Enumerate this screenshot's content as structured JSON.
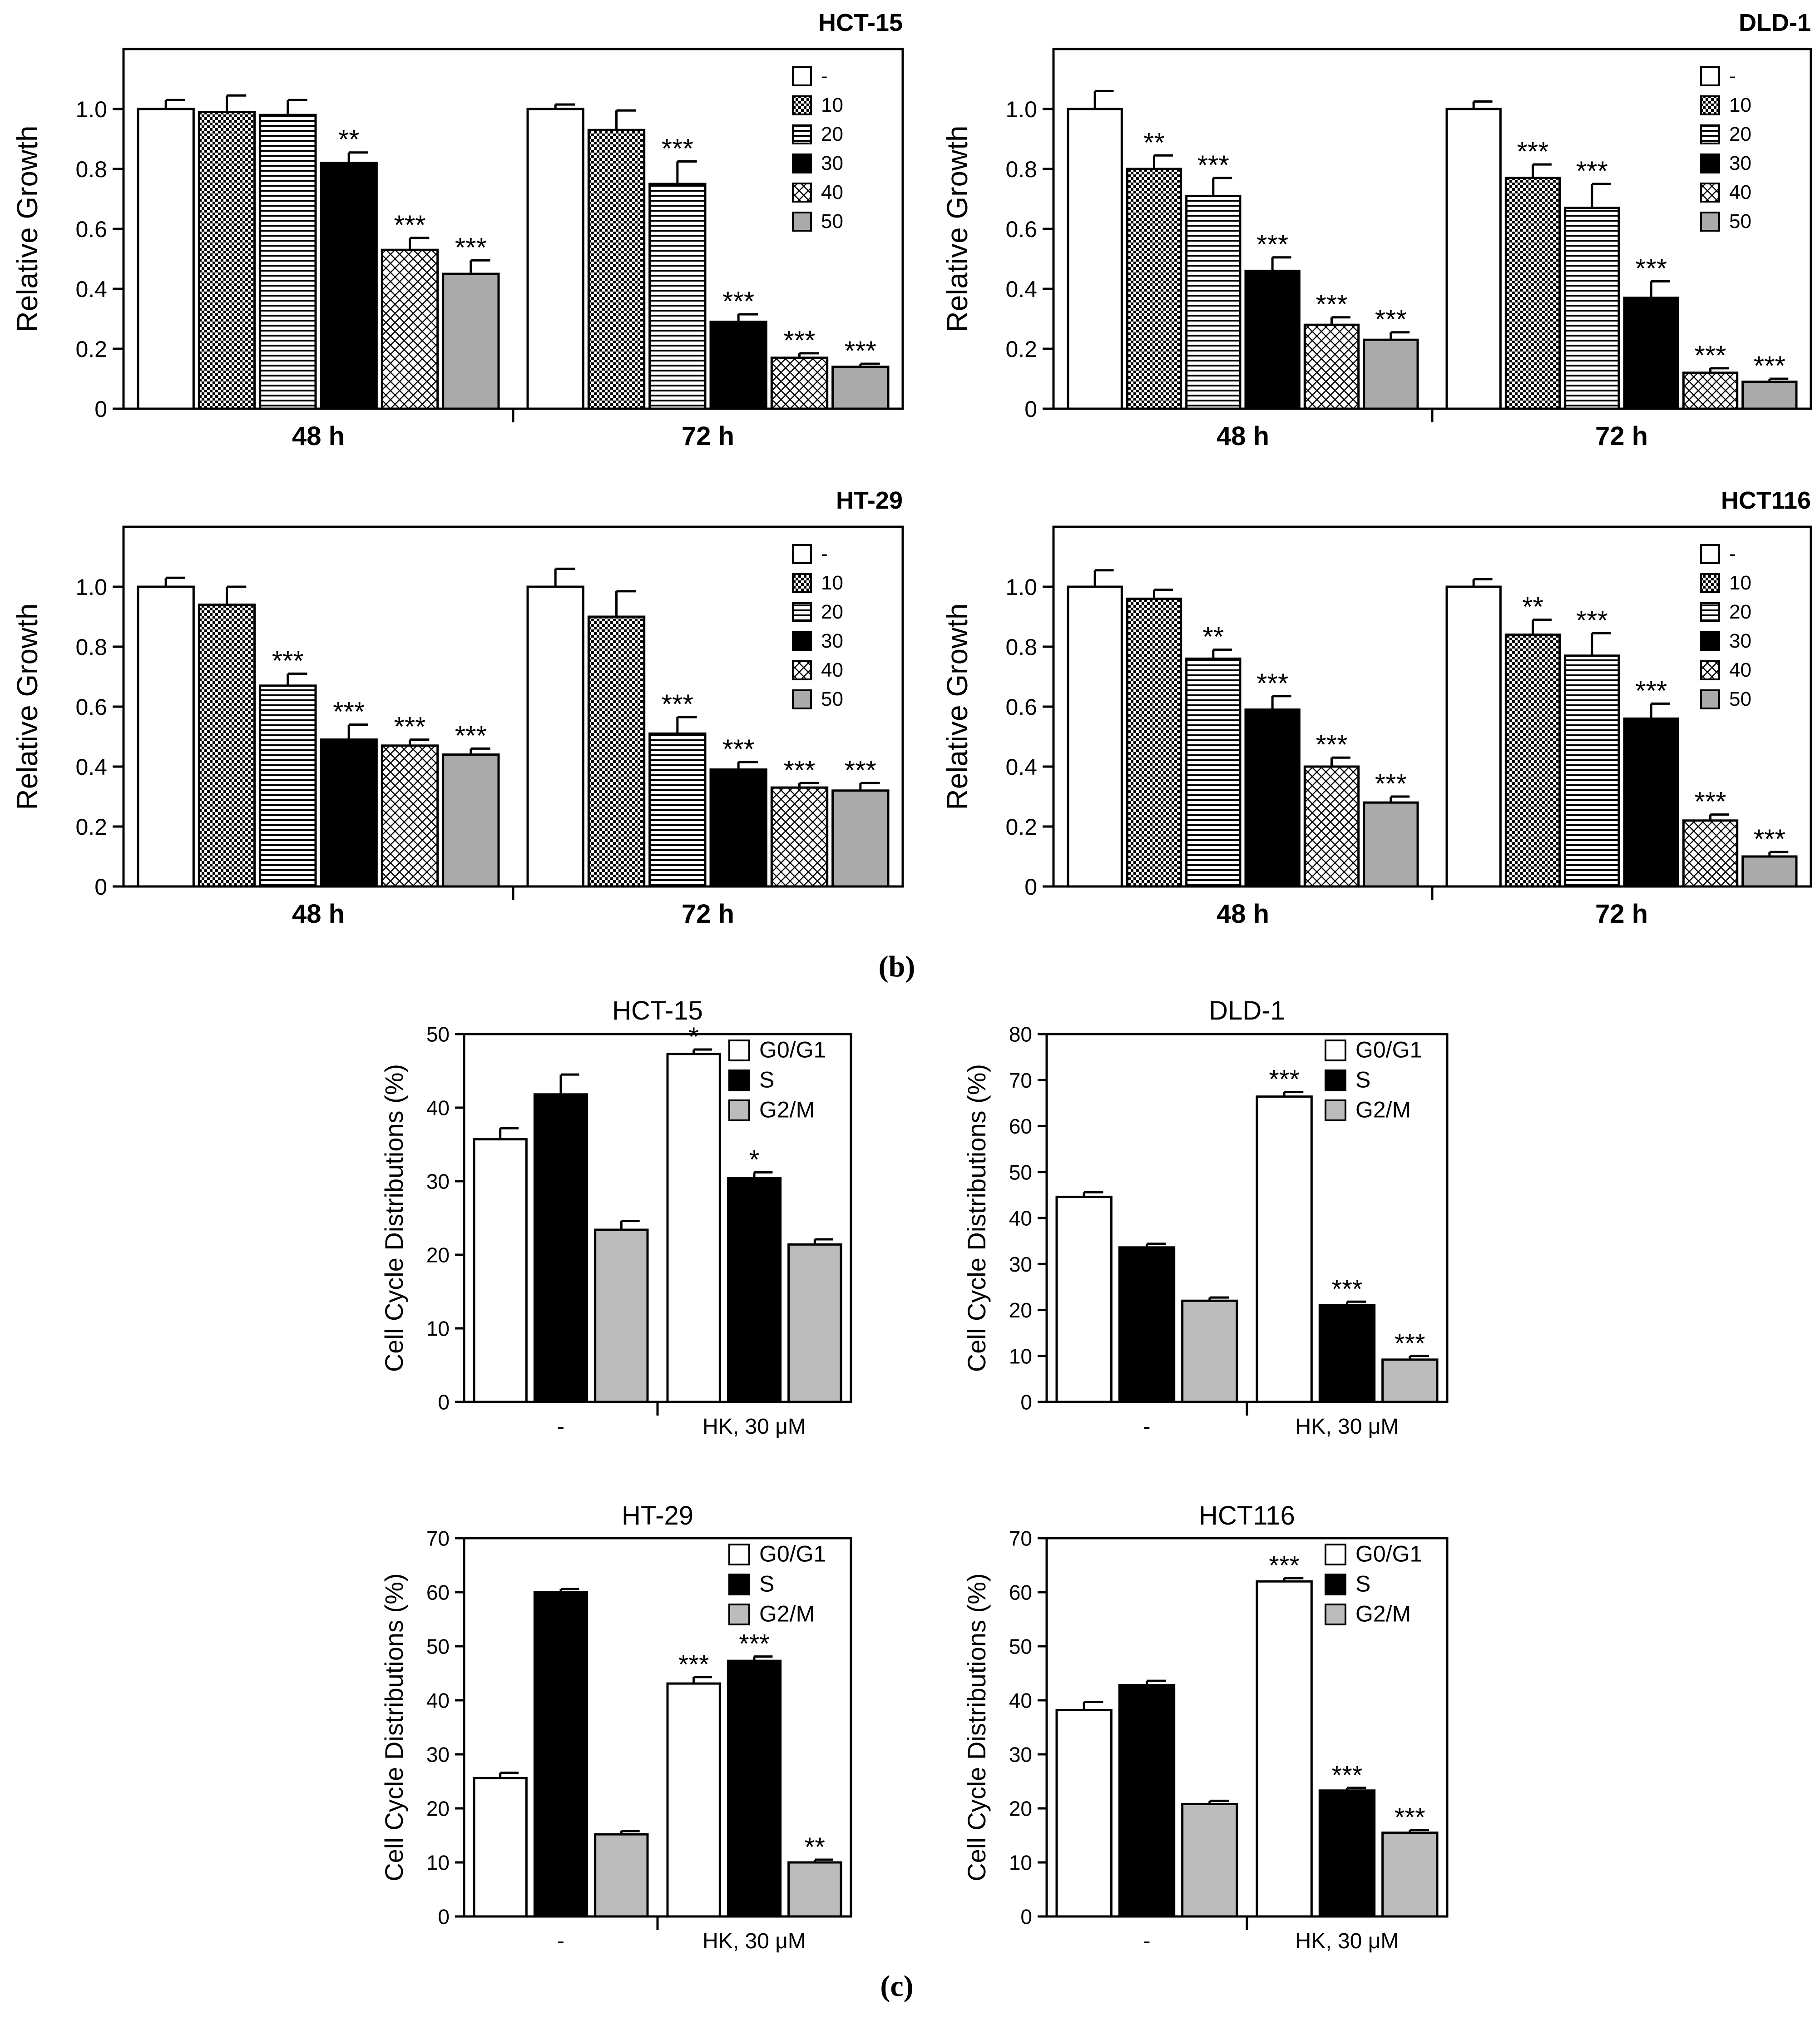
{
  "panel_labels": [
    "(b)",
    "(c)"
  ],
  "chart_data": [
    {
      "id": "b1",
      "type": "bar",
      "title": "HCT-15",
      "ylabel": "Relative Growth",
      "groups": [
        "48 h",
        "72 h"
      ],
      "ylim": [
        0,
        1.2
      ],
      "yticks": [
        0,
        0.2,
        0.4,
        0.6,
        0.8,
        1.0
      ],
      "ytick_labels": [
        "0",
        "0.2",
        "0.4",
        "0.6",
        "0.8",
        "1.0"
      ],
      "legend": [
        "-",
        "10",
        "20",
        "30",
        "40",
        "50"
      ],
      "series": [
        {
          "name": "-",
          "values": [
            1.0,
            1.0
          ],
          "errors": [
            0.03,
            0.015
          ],
          "sig": [
            "",
            ""
          ]
        },
        {
          "name": "10",
          "values": [
            0.99,
            0.93
          ],
          "errors": [
            0.055,
            0.065
          ],
          "sig": [
            "",
            ""
          ]
        },
        {
          "name": "20",
          "values": [
            0.98,
            0.75
          ],
          "errors": [
            0.05,
            0.075
          ],
          "sig": [
            "",
            "***"
          ]
        },
        {
          "name": "30",
          "values": [
            0.82,
            0.29
          ],
          "errors": [
            0.035,
            0.025
          ],
          "sig": [
            "**",
            "***"
          ]
        },
        {
          "name": "40",
          "values": [
            0.53,
            0.17
          ],
          "errors": [
            0.04,
            0.015
          ],
          "sig": [
            "***",
            "***"
          ]
        },
        {
          "name": "50",
          "values": [
            0.45,
            0.14
          ],
          "errors": [
            0.045,
            0.01
          ],
          "sig": [
            "***",
            "***"
          ]
        }
      ]
    },
    {
      "id": "b2",
      "type": "bar",
      "title": "DLD-1",
      "ylabel": "Relative Growth",
      "groups": [
        "48 h",
        "72 h"
      ],
      "ylim": [
        0,
        1.2
      ],
      "yticks": [
        0,
        0.2,
        0.4,
        0.6,
        0.8,
        1.0
      ],
      "ytick_labels": [
        "0",
        "0.2",
        "0.4",
        "0.6",
        "0.8",
        "1.0"
      ],
      "legend": [
        "-",
        "10",
        "20",
        "30",
        "40",
        "50"
      ],
      "series": [
        {
          "name": "-",
          "values": [
            1.0,
            1.0
          ],
          "errors": [
            0.06,
            0.025
          ],
          "sig": [
            "",
            ""
          ]
        },
        {
          "name": "10",
          "values": [
            0.8,
            0.77
          ],
          "errors": [
            0.045,
            0.045
          ],
          "sig": [
            "**",
            "***"
          ]
        },
        {
          "name": "20",
          "values": [
            0.71,
            0.67
          ],
          "errors": [
            0.06,
            0.08
          ],
          "sig": [
            "***",
            "***"
          ]
        },
        {
          "name": "30",
          "values": [
            0.46,
            0.37
          ],
          "errors": [
            0.045,
            0.055
          ],
          "sig": [
            "***",
            "***"
          ]
        },
        {
          "name": "40",
          "values": [
            0.28,
            0.12
          ],
          "errors": [
            0.025,
            0.015
          ],
          "sig": [
            "***",
            "***"
          ]
        },
        {
          "name": "50",
          "values": [
            0.23,
            0.09
          ],
          "errors": [
            0.025,
            0.01
          ],
          "sig": [
            "***",
            "***"
          ]
        }
      ]
    },
    {
      "id": "b3",
      "type": "bar",
      "title": "HT-29",
      "ylabel": "Relative Growth",
      "groups": [
        "48 h",
        "72 h"
      ],
      "ylim": [
        0,
        1.2
      ],
      "yticks": [
        0,
        0.2,
        0.4,
        0.6,
        0.8,
        1.0
      ],
      "ytick_labels": [
        "0",
        "0.2",
        "0.4",
        "0.6",
        "0.8",
        "1.0"
      ],
      "legend": [
        "-",
        "10",
        "20",
        "30",
        "40",
        "50"
      ],
      "series": [
        {
          "name": "-",
          "values": [
            1.0,
            1.0
          ],
          "errors": [
            0.03,
            0.06
          ],
          "sig": [
            "",
            ""
          ]
        },
        {
          "name": "10",
          "values": [
            0.94,
            0.9
          ],
          "errors": [
            0.06,
            0.085
          ],
          "sig": [
            "",
            ""
          ]
        },
        {
          "name": "20",
          "values": [
            0.67,
            0.51
          ],
          "errors": [
            0.04,
            0.055
          ],
          "sig": [
            "***",
            "***"
          ]
        },
        {
          "name": "30",
          "values": [
            0.49,
            0.39
          ],
          "errors": [
            0.05,
            0.025
          ],
          "sig": [
            "***",
            "***"
          ]
        },
        {
          "name": "40",
          "values": [
            0.47,
            0.33
          ],
          "errors": [
            0.02,
            0.015
          ],
          "sig": [
            "***",
            "***"
          ]
        },
        {
          "name": "50",
          "values": [
            0.44,
            0.32
          ],
          "errors": [
            0.02,
            0.025
          ],
          "sig": [
            "***",
            "***"
          ]
        }
      ]
    },
    {
      "id": "b4",
      "type": "bar",
      "title": "HCT116",
      "ylabel": "Relative Growth",
      "groups": [
        "48 h",
        "72 h"
      ],
      "ylim": [
        0,
        1.2
      ],
      "yticks": [
        0,
        0.2,
        0.4,
        0.6,
        0.8,
        1.0
      ],
      "ytick_labels": [
        "0",
        "0.2",
        "0.4",
        "0.6",
        "0.8",
        "1.0"
      ],
      "legend": [
        "-",
        "10",
        "20",
        "30",
        "40",
        "50"
      ],
      "series": [
        {
          "name": "-",
          "values": [
            1.0,
            1.0
          ],
          "errors": [
            0.055,
            0.025
          ],
          "sig": [
            "",
            ""
          ]
        },
        {
          "name": "10",
          "values": [
            0.96,
            0.84
          ],
          "errors": [
            0.03,
            0.05
          ],
          "sig": [
            "",
            "**"
          ]
        },
        {
          "name": "20",
          "values": [
            0.76,
            0.77
          ],
          "errors": [
            0.03,
            0.075
          ],
          "sig": [
            "**",
            "***"
          ]
        },
        {
          "name": "30",
          "values": [
            0.59,
            0.56
          ],
          "errors": [
            0.045,
            0.05
          ],
          "sig": [
            "***",
            "***"
          ]
        },
        {
          "name": "40",
          "values": [
            0.4,
            0.22
          ],
          "errors": [
            0.03,
            0.02
          ],
          "sig": [
            "***",
            "***"
          ]
        },
        {
          "name": "50",
          "values": [
            0.28,
            0.1
          ],
          "errors": [
            0.02,
            0.015
          ],
          "sig": [
            "***",
            "***"
          ]
        }
      ]
    },
    {
      "id": "c1",
      "type": "bar",
      "title": "HCT-15",
      "ylabel": "Cell Cycle Distributions (%)",
      "groups": [
        "-",
        "HK, 30 μM"
      ],
      "ylim": [
        0,
        50
      ],
      "yticks": [
        0,
        10,
        20,
        30,
        40,
        50
      ],
      "ytick_labels": [
        "0",
        "10",
        "20",
        "30",
        "40",
        "50"
      ],
      "legend": [
        "G0/G1",
        "S",
        "G2/M"
      ],
      "series": [
        {
          "name": "G0/G1",
          "values": [
            35.7,
            47.3
          ],
          "errors": [
            1.5,
            0.6
          ],
          "sig": [
            "",
            "*"
          ]
        },
        {
          "name": "S",
          "values": [
            41.8,
            30.4
          ],
          "errors": [
            2.7,
            0.8
          ],
          "sig": [
            "",
            "*"
          ]
        },
        {
          "name": "G2/M",
          "values": [
            23.4,
            21.4
          ],
          "errors": [
            1.2,
            0.7
          ],
          "sig": [
            "",
            ""
          ]
        }
      ]
    },
    {
      "id": "c2",
      "type": "bar",
      "title": "DLD-1",
      "ylabel": "Cell Cycle Distributions (%)",
      "groups": [
        "-",
        "HK, 30 μM"
      ],
      "ylim": [
        0,
        80
      ],
      "yticks": [
        0,
        10,
        20,
        30,
        40,
        50,
        60,
        70,
        80
      ],
      "ytick_labels": [
        "0",
        "10",
        "20",
        "30",
        "40",
        "50",
        "60",
        "70",
        "80"
      ],
      "legend": [
        "G0/G1",
        "S",
        "G2/M"
      ],
      "series": [
        {
          "name": "G0/G1",
          "values": [
            44.6,
            66.4
          ],
          "errors": [
            1.0,
            1.0
          ],
          "sig": [
            "",
            "***"
          ]
        },
        {
          "name": "S",
          "values": [
            33.6,
            21.0
          ],
          "errors": [
            0.8,
            0.8
          ],
          "sig": [
            "",
            "***"
          ]
        },
        {
          "name": "G2/M",
          "values": [
            22.0,
            9.2
          ],
          "errors": [
            0.7,
            0.8
          ],
          "sig": [
            "",
            "***"
          ]
        }
      ]
    },
    {
      "id": "c3",
      "type": "bar",
      "title": "HT-29",
      "ylabel": "Cell Cycle Distributions (%)",
      "groups": [
        "-",
        "HK, 30 μM"
      ],
      "ylim": [
        0,
        70
      ],
      "yticks": [
        0,
        10,
        20,
        30,
        40,
        50,
        60,
        70
      ],
      "ytick_labels": [
        "0",
        "10",
        "20",
        "30",
        "40",
        "50",
        "60",
        "70"
      ],
      "legend": [
        "G0/G1",
        "S",
        "G2/M"
      ],
      "series": [
        {
          "name": "G0/G1",
          "values": [
            25.6,
            43.1
          ],
          "errors": [
            1.0,
            1.2
          ],
          "sig": [
            "",
            "***"
          ]
        },
        {
          "name": "S",
          "values": [
            60.0,
            47.3
          ],
          "errors": [
            0.6,
            0.8
          ],
          "sig": [
            "",
            "***"
          ]
        },
        {
          "name": "G2/M",
          "values": [
            15.2,
            10.0
          ],
          "errors": [
            0.6,
            0.5
          ],
          "sig": [
            "",
            "**"
          ]
        }
      ]
    },
    {
      "id": "c4",
      "type": "bar",
      "title": "HCT116",
      "ylabel": "Cell Cycle Distributions (%)",
      "groups": [
        "-",
        "HK, 30 μM"
      ],
      "ylim": [
        0,
        70
      ],
      "yticks": [
        0,
        10,
        20,
        30,
        40,
        50,
        60,
        70
      ],
      "ytick_labels": [
        "0",
        "10",
        "20",
        "30",
        "40",
        "50",
        "60",
        "70"
      ],
      "legend": [
        "G0/G1",
        "S",
        "G2/M"
      ],
      "series": [
        {
          "name": "G0/G1",
          "values": [
            38.2,
            62.0
          ],
          "errors": [
            1.5,
            0.6
          ],
          "sig": [
            "",
            "***"
          ]
        },
        {
          "name": "S",
          "values": [
            42.8,
            23.3
          ],
          "errors": [
            0.8,
            0.5
          ],
          "sig": [
            "",
            "***"
          ]
        },
        {
          "name": "G2/M",
          "values": [
            20.8,
            15.5
          ],
          "errors": [
            0.6,
            0.5
          ],
          "sig": [
            "",
            "***"
          ]
        }
      ]
    }
  ]
}
